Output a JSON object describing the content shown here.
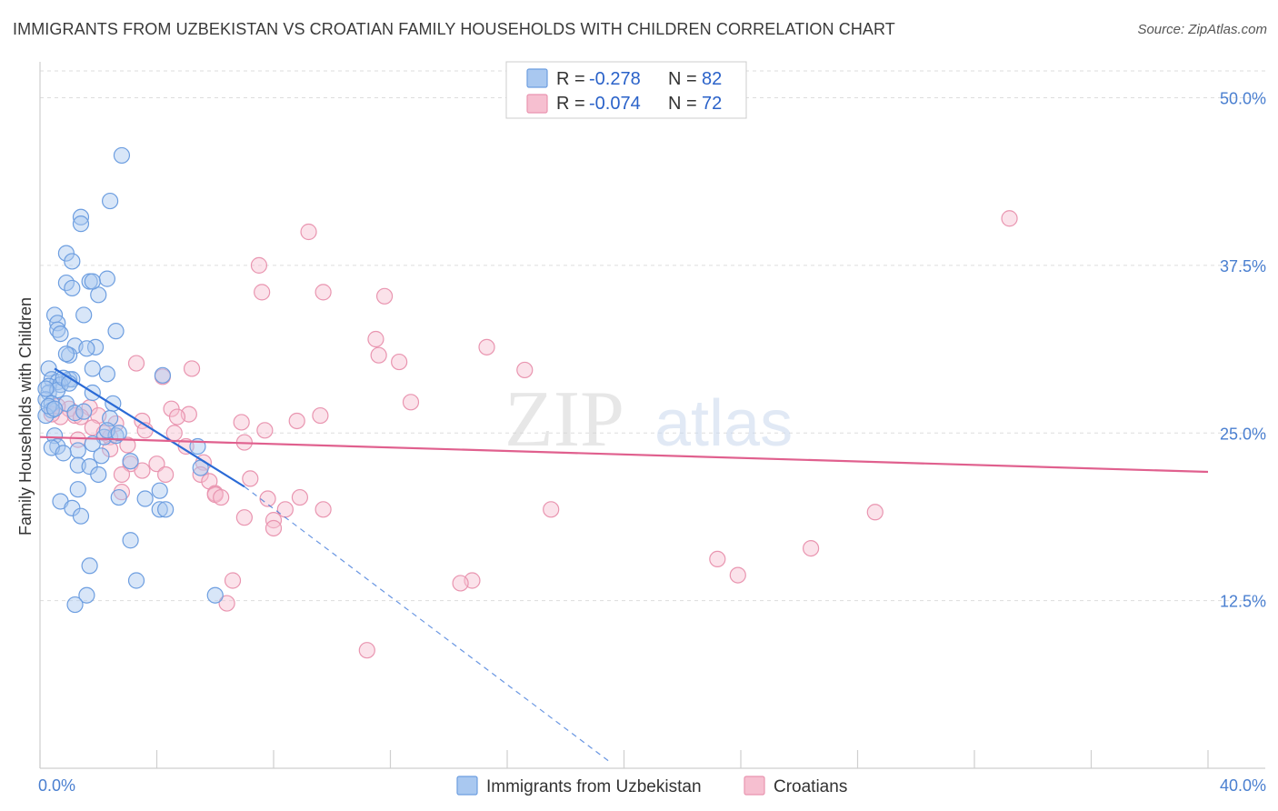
{
  "title": "IMMIGRANTS FROM UZBEKISTAN VS CROATIAN FAMILY HOUSEHOLDS WITH CHILDREN CORRELATION CHART",
  "source": "Source: ZipAtlas.com",
  "watermark": {
    "zip": "ZIP",
    "atlas": "atlas"
  },
  "colors": {
    "blue_fill": "#a9c8f0",
    "blue_stroke": "#6d9ee0",
    "blue_line": "#2a6ad6",
    "pink_fill": "#f6bfd0",
    "pink_stroke": "#e995b0",
    "pink_line": "#e0608e",
    "grid": "#dddddd",
    "tick_text": "#4a7fd0"
  },
  "chart_data": {
    "type": "scatter",
    "xlabel": "",
    "ylabel": "Family Households with Children",
    "xlim": [
      0,
      40
    ],
    "ylim": [
      0,
      52
    ],
    "x_tick_labels": [
      {
        "value": 0,
        "label": "0.0%"
      },
      {
        "value": 40,
        "label": "40.0%"
      }
    ],
    "y_tick_labels": [
      {
        "value": 12.5,
        "label": "12.5%"
      },
      {
        "value": 25.0,
        "label": "25.0%"
      },
      {
        "value": 37.5,
        "label": "37.5%"
      },
      {
        "value": 50.0,
        "label": "50.0%"
      }
    ],
    "x_minor_ticks": [
      0,
      4,
      8,
      12,
      16,
      20,
      24,
      28,
      32,
      36,
      40
    ],
    "legend": {
      "entries": [
        {
          "r_label": "R =",
          "r_value": "-0.278",
          "n_label": "N =",
          "n_value": "82"
        },
        {
          "r_label": "R =",
          "r_value": "-0.074",
          "n_label": "N =",
          "n_value": "72"
        }
      ]
    },
    "series": [
      {
        "name": "Immigrants from Uzbekistan",
        "color": "blue",
        "trend": {
          "x0": 0.5,
          "y0": 29.8,
          "x1": 7.0,
          "y1": 21.0,
          "dash_to_x": 19.5,
          "dash_to_y": 0.5
        },
        "points": [
          [
            2.8,
            45.7
          ],
          [
            2.4,
            42.3
          ],
          [
            1.4,
            41.1
          ],
          [
            1.4,
            40.6
          ],
          [
            0.9,
            38.4
          ],
          [
            1.1,
            37.8
          ],
          [
            0.9,
            36.2
          ],
          [
            1.1,
            35.8
          ],
          [
            2.3,
            36.5
          ],
          [
            1.7,
            36.3
          ],
          [
            2.0,
            35.3
          ],
          [
            1.8,
            36.3
          ],
          [
            0.5,
            33.8
          ],
          [
            1.5,
            33.8
          ],
          [
            0.6,
            33.2
          ],
          [
            0.6,
            32.7
          ],
          [
            2.6,
            32.6
          ],
          [
            0.7,
            32.4
          ],
          [
            1.2,
            31.5
          ],
          [
            1.9,
            31.4
          ],
          [
            1.6,
            31.3
          ],
          [
            1.0,
            30.8
          ],
          [
            0.9,
            30.9
          ],
          [
            1.8,
            29.8
          ],
          [
            2.3,
            29.4
          ],
          [
            4.2,
            29.3
          ],
          [
            0.3,
            29.8
          ],
          [
            0.4,
            29.0
          ],
          [
            0.6,
            28.8
          ],
          [
            1.0,
            29.0
          ],
          [
            1.1,
            29.0
          ],
          [
            0.3,
            28.5
          ],
          [
            0.7,
            28.6
          ],
          [
            0.3,
            28.0
          ],
          [
            0.6,
            28.2
          ],
          [
            1.8,
            28.0
          ],
          [
            0.2,
            27.5
          ],
          [
            0.4,
            27.2
          ],
          [
            0.9,
            27.2
          ],
          [
            2.5,
            27.2
          ],
          [
            0.4,
            26.7
          ],
          [
            0.2,
            26.3
          ],
          [
            1.2,
            26.5
          ],
          [
            2.4,
            26.1
          ],
          [
            2.2,
            24.7
          ],
          [
            2.6,
            24.8
          ],
          [
            2.3,
            25.2
          ],
          [
            0.5,
            24.8
          ],
          [
            1.8,
            24.2
          ],
          [
            0.6,
            24.0
          ],
          [
            0.4,
            23.9
          ],
          [
            1.3,
            23.7
          ],
          [
            0.8,
            23.5
          ],
          [
            2.1,
            23.3
          ],
          [
            3.1,
            22.9
          ],
          [
            1.3,
            22.6
          ],
          [
            1.7,
            22.5
          ],
          [
            5.5,
            22.4
          ],
          [
            5.4,
            24.0
          ],
          [
            2.0,
            21.9
          ],
          [
            1.3,
            20.8
          ],
          [
            4.1,
            20.7
          ],
          [
            2.7,
            20.2
          ],
          [
            3.6,
            20.1
          ],
          [
            0.7,
            19.9
          ],
          [
            1.1,
            19.4
          ],
          [
            4.1,
            19.3
          ],
          [
            1.4,
            18.8
          ],
          [
            3.1,
            17.0
          ],
          [
            1.7,
            15.1
          ],
          [
            3.3,
            14.0
          ],
          [
            1.6,
            12.9
          ],
          [
            1.2,
            12.2
          ],
          [
            6.0,
            12.9
          ],
          [
            4.3,
            19.3
          ],
          [
            0.3,
            27.0
          ],
          [
            0.5,
            26.8
          ],
          [
            2.7,
            25.0
          ],
          [
            0.2,
            28.3
          ],
          [
            0.8,
            29.1
          ],
          [
            1.0,
            28.7
          ],
          [
            1.5,
            26.6
          ]
        ]
      },
      {
        "name": "Croatians",
        "color": "pink",
        "trend": {
          "x0": 0.0,
          "y0": 24.7,
          "x1": 40.0,
          "y1": 22.1
        },
        "points": [
          [
            33.2,
            41.0
          ],
          [
            9.2,
            40.0
          ],
          [
            7.5,
            37.5
          ],
          [
            7.6,
            35.5
          ],
          [
            9.7,
            35.5
          ],
          [
            11.8,
            35.2
          ],
          [
            11.5,
            32.0
          ],
          [
            15.3,
            31.4
          ],
          [
            11.6,
            30.8
          ],
          [
            12.3,
            30.3
          ],
          [
            3.3,
            30.2
          ],
          [
            5.2,
            29.8
          ],
          [
            16.6,
            29.7
          ],
          [
            4.2,
            29.2
          ],
          [
            12.7,
            27.3
          ],
          [
            1.0,
            26.8
          ],
          [
            1.7,
            26.9
          ],
          [
            4.5,
            26.8
          ],
          [
            5.1,
            26.4
          ],
          [
            2.0,
            26.3
          ],
          [
            4.7,
            26.2
          ],
          [
            9.6,
            26.3
          ],
          [
            0.7,
            26.2
          ],
          [
            0.4,
            26.4
          ],
          [
            1.2,
            26.3
          ],
          [
            3.5,
            25.9
          ],
          [
            6.9,
            25.8
          ],
          [
            8.8,
            25.9
          ],
          [
            2.6,
            25.7
          ],
          [
            1.8,
            25.4
          ],
          [
            3.6,
            25.2
          ],
          [
            4.6,
            25.0
          ],
          [
            7.7,
            25.2
          ],
          [
            1.3,
            24.5
          ],
          [
            2.4,
            24.7
          ],
          [
            5.0,
            24.0
          ],
          [
            2.4,
            23.8
          ],
          [
            3.1,
            22.7
          ],
          [
            4.0,
            22.7
          ],
          [
            5.6,
            22.8
          ],
          [
            3.5,
            22.2
          ],
          [
            4.3,
            21.9
          ],
          [
            5.5,
            21.9
          ],
          [
            2.8,
            21.9
          ],
          [
            5.8,
            21.4
          ],
          [
            7.2,
            21.6
          ],
          [
            2.8,
            20.6
          ],
          [
            6.0,
            20.5
          ],
          [
            6.0,
            20.4
          ],
          [
            6.2,
            20.2
          ],
          [
            7.8,
            20.1
          ],
          [
            8.9,
            20.2
          ],
          [
            8.4,
            19.3
          ],
          [
            9.7,
            19.3
          ],
          [
            17.5,
            19.3
          ],
          [
            28.6,
            19.1
          ],
          [
            7.0,
            18.7
          ],
          [
            8.0,
            18.5
          ],
          [
            8.0,
            17.9
          ],
          [
            23.2,
            15.6
          ],
          [
            26.4,
            16.4
          ],
          [
            23.9,
            14.4
          ],
          [
            14.8,
            14.0
          ],
          [
            14.4,
            13.8
          ],
          [
            6.6,
            14.0
          ],
          [
            6.4,
            12.3
          ],
          [
            11.2,
            8.8
          ],
          [
            1.4,
            26.2
          ],
          [
            0.6,
            27.0
          ],
          [
            2.2,
            25.0
          ],
          [
            3.0,
            24.1
          ],
          [
            7.0,
            24.3
          ]
        ]
      }
    ]
  }
}
